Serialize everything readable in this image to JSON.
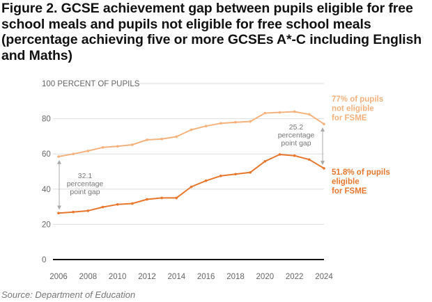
{
  "title": "Figure 2. GCSE achievement gap between pupils eligible for free school meals and pupils not eligible for free school meals (percentage achieving five or more GCSEs A*-C including English and Maths)",
  "source": "Source: Department of Education",
  "colors": {
    "not_eligible": "#f6b27e",
    "eligible": "#e8772d",
    "axis": "#111111",
    "grid": "#dddddd",
    "gap_arrow": "#aaaaaa"
  },
  "chart_data": {
    "type": "line",
    "x": [
      2006,
      2007,
      2008,
      2009,
      2010,
      2011,
      2012,
      2013,
      2014,
      2015,
      2016,
      2017,
      2018,
      2019,
      2020,
      2021,
      2022,
      2023,
      2024
    ],
    "series": [
      {
        "name": "not eligible for FSME",
        "key": "not_eligible",
        "values": [
          58.5,
          60,
          61.7,
          63.7,
          64.3,
          65.2,
          68,
          68.5,
          69.8,
          73.7,
          75.8,
          77.4,
          78,
          78.4,
          83.2,
          83.6,
          84,
          82.5,
          77
        ]
      },
      {
        "name": "eligible for FSME",
        "key": "eligible",
        "values": [
          26.4,
          27,
          27.7,
          29.8,
          31.3,
          31.8,
          34.2,
          35,
          35,
          41.3,
          44.8,
          47.5,
          48.5,
          49.5,
          55.8,
          59.7,
          59,
          56.8,
          51.8
        ]
      }
    ],
    "xticks": [
      2006,
      2008,
      2010,
      2012,
      2014,
      2016,
      2018,
      2020,
      2022,
      2024
    ],
    "yticks": [
      0,
      20,
      40,
      60,
      80,
      100
    ],
    "ytick_labels": [
      "0",
      "20",
      "40",
      "60",
      "80",
      "100 PERCENT OF PUPILS"
    ],
    "ylim": [
      0,
      100
    ],
    "xlim": [
      2006,
      2024
    ],
    "grid": "horizontal",
    "series_labels": {
      "not_eligible": [
        "77% of pupils",
        "not eligible",
        "for FSME"
      ],
      "eligible": [
        "51.8% of pupils",
        "eligible",
        "for FSME"
      ]
    },
    "annotations": [
      {
        "x": 2006,
        "from": 26.4,
        "to": 58.5,
        "text": [
          "32.1",
          "percentage",
          "point gap"
        ]
      },
      {
        "x": 2024,
        "from": 51.8,
        "to": 77,
        "text": [
          "25.2",
          "percentage",
          "point gap"
        ]
      }
    ]
  }
}
